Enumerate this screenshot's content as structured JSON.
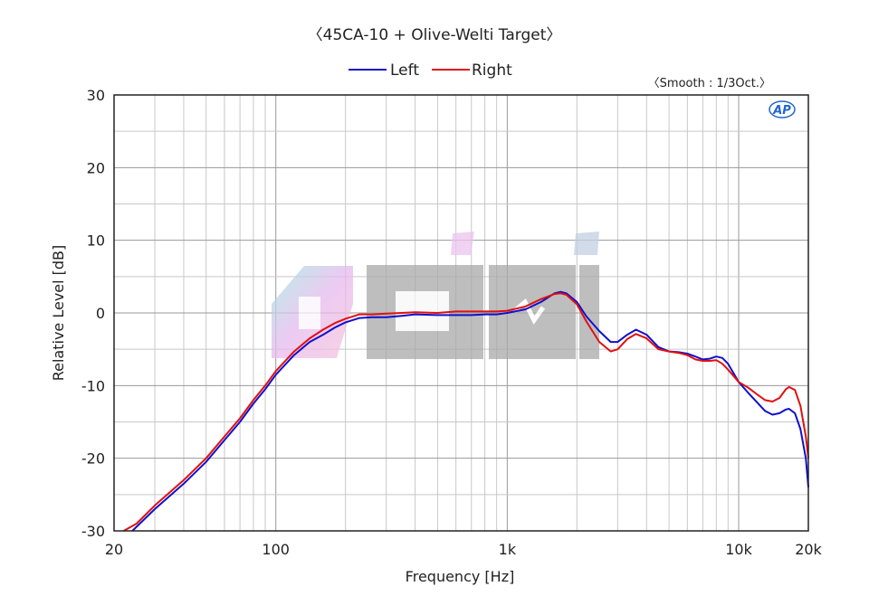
{
  "chart_data": {
    "type": "line",
    "title": "〈45CA-10 + Olive-Welti Target〉",
    "smoothing_note": "〈Smooth : 1/3Oct.〉",
    "watermark": "CHI",
    "logo_text": "AP",
    "xlabel": "Frequency [Hz]",
    "ylabel": "Relative Level [dB]",
    "x_scale": "log",
    "xlim": [
      20,
      20000
    ],
    "ylim": [
      -30,
      30
    ],
    "grid": true,
    "legend_position": "top-center",
    "x_ticks": [
      {
        "value": 20,
        "label": "20"
      },
      {
        "value": 100,
        "label": "100"
      },
      {
        "value": 1000,
        "label": "1k"
      },
      {
        "value": 10000,
        "label": "10k"
      },
      {
        "value": 20000,
        "label": "20k"
      }
    ],
    "y_ticks": [
      {
        "value": 30,
        "label": "30"
      },
      {
        "value": 20,
        "label": "20"
      },
      {
        "value": 10,
        "label": "10"
      },
      {
        "value": 0,
        "label": "0"
      },
      {
        "value": -10,
        "label": "-10"
      },
      {
        "value": -20,
        "label": "-20"
      },
      {
        "value": -30,
        "label": "-30"
      }
    ],
    "series": [
      {
        "name": "Left",
        "color": "#1010cc",
        "points": [
          [
            24,
            -30
          ],
          [
            30,
            -27
          ],
          [
            40,
            -23.5
          ],
          [
            50,
            -20.5
          ],
          [
            60,
            -17.5
          ],
          [
            70,
            -15
          ],
          [
            80,
            -12.5
          ],
          [
            90,
            -10.5
          ],
          [
            100,
            -8.5
          ],
          [
            120,
            -5.8
          ],
          [
            140,
            -4
          ],
          [
            160,
            -3
          ],
          [
            180,
            -2
          ],
          [
            200,
            -1.3
          ],
          [
            230,
            -0.7
          ],
          [
            260,
            -0.6
          ],
          [
            300,
            -0.6
          ],
          [
            350,
            -0.4
          ],
          [
            400,
            -0.2
          ],
          [
            500,
            -0.3
          ],
          [
            600,
            -0.3
          ],
          [
            700,
            -0.3
          ],
          [
            800,
            -0.2
          ],
          [
            900,
            -0.2
          ],
          [
            1000,
            0
          ],
          [
            1200,
            0.5
          ],
          [
            1400,
            1.5
          ],
          [
            1600,
            2.7
          ],
          [
            1700,
            2.9
          ],
          [
            1800,
            2.7
          ],
          [
            2000,
            1.5
          ],
          [
            2200,
            -0.5
          ],
          [
            2500,
            -2.5
          ],
          [
            2800,
            -4
          ],
          [
            3000,
            -4
          ],
          [
            3300,
            -3
          ],
          [
            3600,
            -2.3
          ],
          [
            4000,
            -3
          ],
          [
            4500,
            -4.7
          ],
          [
            5000,
            -5.3
          ],
          [
            5500,
            -5.4
          ],
          [
            6000,
            -5.6
          ],
          [
            6500,
            -6
          ],
          [
            7000,
            -6.4
          ],
          [
            7500,
            -6.3
          ],
          [
            8000,
            -6
          ],
          [
            8500,
            -6.2
          ],
          [
            9000,
            -7
          ],
          [
            10000,
            -9.5
          ],
          [
            11000,
            -11
          ],
          [
            12000,
            -12.3
          ],
          [
            13000,
            -13.5
          ],
          [
            14000,
            -14
          ],
          [
            15000,
            -13.8
          ],
          [
            16000,
            -13.3
          ],
          [
            16500,
            -13.2
          ],
          [
            17500,
            -13.8
          ],
          [
            18500,
            -16
          ],
          [
            19500,
            -20
          ],
          [
            20000,
            -24
          ]
        ]
      },
      {
        "name": "Right",
        "color": "#e01010",
        "points": [
          [
            22,
            -30
          ],
          [
            25,
            -29
          ],
          [
            30,
            -26.5
          ],
          [
            40,
            -23
          ],
          [
            50,
            -20
          ],
          [
            60,
            -17
          ],
          [
            70,
            -14.5
          ],
          [
            80,
            -12
          ],
          [
            90,
            -10
          ],
          [
            100,
            -8
          ],
          [
            120,
            -5.3
          ],
          [
            140,
            -3.5
          ],
          [
            160,
            -2.3
          ],
          [
            180,
            -1.4
          ],
          [
            200,
            -0.8
          ],
          [
            230,
            -0.2
          ],
          [
            260,
            -0.2
          ],
          [
            300,
            -0.1
          ],
          [
            350,
            0
          ],
          [
            400,
            0.1
          ],
          [
            500,
            0
          ],
          [
            600,
            0.2
          ],
          [
            700,
            0.2
          ],
          [
            800,
            0.2
          ],
          [
            900,
            0.2
          ],
          [
            1000,
            0.3
          ],
          [
            1200,
            0.9
          ],
          [
            1400,
            1.9
          ],
          [
            1600,
            2.6
          ],
          [
            1700,
            2.7
          ],
          [
            1800,
            2.5
          ],
          [
            2000,
            1.2
          ],
          [
            2200,
            -1.2
          ],
          [
            2500,
            -4
          ],
          [
            2800,
            -5.3
          ],
          [
            3000,
            -5
          ],
          [
            3300,
            -3.6
          ],
          [
            3600,
            -2.9
          ],
          [
            4000,
            -3.5
          ],
          [
            4500,
            -5
          ],
          [
            5000,
            -5.3
          ],
          [
            5500,
            -5.5
          ],
          [
            6000,
            -5.8
          ],
          [
            6500,
            -6.4
          ],
          [
            7000,
            -6.6
          ],
          [
            7500,
            -6.6
          ],
          [
            8000,
            -6.5
          ],
          [
            8500,
            -7
          ],
          [
            9000,
            -7.8
          ],
          [
            10000,
            -9.5
          ],
          [
            11000,
            -10.3
          ],
          [
            12000,
            -11.2
          ],
          [
            13000,
            -12
          ],
          [
            14000,
            -12.2
          ],
          [
            15000,
            -11.7
          ],
          [
            16000,
            -10.5
          ],
          [
            16500,
            -10.2
          ],
          [
            17500,
            -10.6
          ],
          [
            18500,
            -12.8
          ],
          [
            19500,
            -17
          ],
          [
            20000,
            -20
          ]
        ]
      }
    ]
  }
}
